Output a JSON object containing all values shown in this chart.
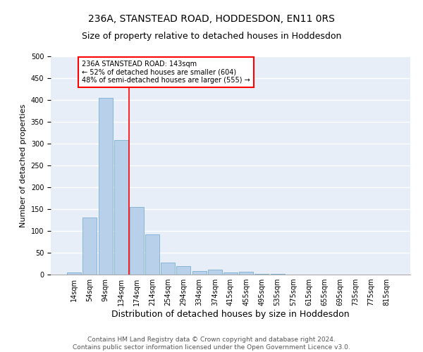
{
  "title": "236A, STANSTEAD ROAD, HODDESDON, EN11 0RS",
  "subtitle": "Size of property relative to detached houses in Hoddesdon",
  "xlabel": "Distribution of detached houses by size in Hoddesdon",
  "ylabel": "Number of detached properties",
  "footer_line1": "Contains HM Land Registry data © Crown copyright and database right 2024.",
  "footer_line2": "Contains public sector information licensed under the Open Government Licence v3.0.",
  "bar_labels": [
    "14sqm",
    "54sqm",
    "94sqm",
    "134sqm",
    "174sqm",
    "214sqm",
    "254sqm",
    "294sqm",
    "334sqm",
    "374sqm",
    "415sqm",
    "455sqm",
    "495sqm",
    "535sqm",
    "575sqm",
    "615sqm",
    "655sqm",
    "695sqm",
    "735sqm",
    "775sqm",
    "815sqm"
  ],
  "bar_values": [
    5,
    130,
    405,
    308,
    155,
    92,
    28,
    20,
    8,
    11,
    5,
    6,
    2,
    1,
    0,
    0,
    0,
    0,
    0,
    0,
    0
  ],
  "bar_color": "#b8d0ea",
  "bar_edge_color": "#7aafd4",
  "red_line_x": 3.5,
  "annotation_text": "236A STANSTEAD ROAD: 143sqm\n← 52% of detached houses are smaller (604)\n48% of semi-detached houses are larger (555) →",
  "annotation_box_color": "white",
  "annotation_box_edge_color": "red",
  "ylim": [
    0,
    500
  ],
  "yticks": [
    0,
    50,
    100,
    150,
    200,
    250,
    300,
    350,
    400,
    450,
    500
  ],
  "background_color": "#e8eef8",
  "grid_color": "white",
  "title_fontsize": 10,
  "subtitle_fontsize": 9,
  "xlabel_fontsize": 9,
  "ylabel_fontsize": 8,
  "tick_fontsize": 7,
  "annotation_fontsize": 7,
  "footer_fontsize": 6.5
}
